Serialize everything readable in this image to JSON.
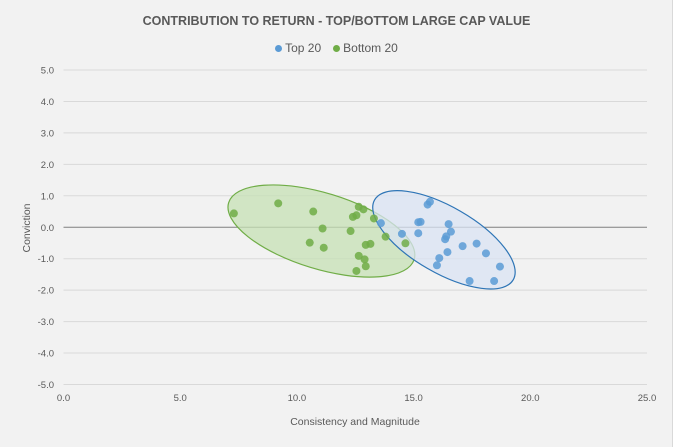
{
  "chart_data": {
    "type": "scatter",
    "title": "CONTRIBUTION TO RETURN - TOP/BOTTOM LARGE CAP VALUE",
    "xlabel": "Consistency and Magnitude",
    "ylabel": "Conviction",
    "xlim": [
      0,
      25
    ],
    "ylim": [
      -5,
      5
    ],
    "x_ticks": [
      "0.0",
      "5.0",
      "10.0",
      "15.0",
      "20.0",
      "25.0"
    ],
    "x_tick_values": [
      0,
      5,
      10,
      15,
      20,
      25
    ],
    "y_ticks": [
      "5.0",
      "4.0",
      "3.0",
      "2.0",
      "1.0",
      "0.0",
      "-1.0",
      "-2.0",
      "-3.0",
      "-4.0",
      "-5.0"
    ],
    "y_tick_values": [
      5,
      4,
      3,
      2,
      1,
      0,
      -1,
      -2,
      -3,
      -4,
      -5
    ],
    "grid": true,
    "legend_position": "top-center",
    "series": [
      {
        "name": "Top 20",
        "color": "#5B9BD5",
        "points": [
          [
            13.6,
            0.13
          ],
          [
            14.5,
            -0.21
          ],
          [
            15.2,
            -0.19
          ],
          [
            15.2,
            0.16
          ],
          [
            15.3,
            0.17
          ],
          [
            15.6,
            0.72
          ],
          [
            15.7,
            0.81
          ],
          [
            16.5,
            0.1
          ],
          [
            16.6,
            -0.14
          ],
          [
            16.4,
            -0.29
          ],
          [
            16.35,
            -0.38
          ],
          [
            16.45,
            -0.79
          ],
          [
            16.1,
            -0.98
          ],
          [
            16.0,
            -1.21
          ],
          [
            17.1,
            -0.6
          ],
          [
            17.7,
            -0.52
          ],
          [
            18.1,
            -0.83
          ],
          [
            18.7,
            -1.25
          ],
          [
            17.4,
            -1.71
          ],
          [
            18.45,
            -1.71
          ]
        ],
        "cluster_ellipse": {
          "center": [
            16.3,
            -0.4
          ],
          "fill": "#DAE3F3",
          "stroke": "#2E75B6"
        }
      },
      {
        "name": "Bottom 20",
        "color": "#70AD47",
        "points": [
          [
            7.3,
            0.44
          ],
          [
            9.2,
            0.76
          ],
          [
            10.7,
            0.5
          ],
          [
            11.1,
            -0.04
          ],
          [
            10.55,
            -0.49
          ],
          [
            11.15,
            -0.65
          ],
          [
            12.3,
            -0.12
          ],
          [
            12.4,
            0.33
          ],
          [
            12.55,
            0.38
          ],
          [
            12.65,
            0.65
          ],
          [
            12.85,
            0.57
          ],
          [
            12.95,
            -0.56
          ],
          [
            13.15,
            -0.53
          ],
          [
            12.65,
            -0.91
          ],
          [
            12.9,
            -1.02
          ],
          [
            12.95,
            -1.24
          ],
          [
            12.55,
            -1.39
          ],
          [
            13.3,
            0.28
          ],
          [
            13.8,
            -0.3
          ],
          [
            14.65,
            -0.51
          ]
        ],
        "cluster_ellipse": {
          "center": [
            11.05,
            -0.12
          ],
          "fill": "#C5E0B4",
          "stroke": "#70AD47"
        }
      }
    ]
  }
}
